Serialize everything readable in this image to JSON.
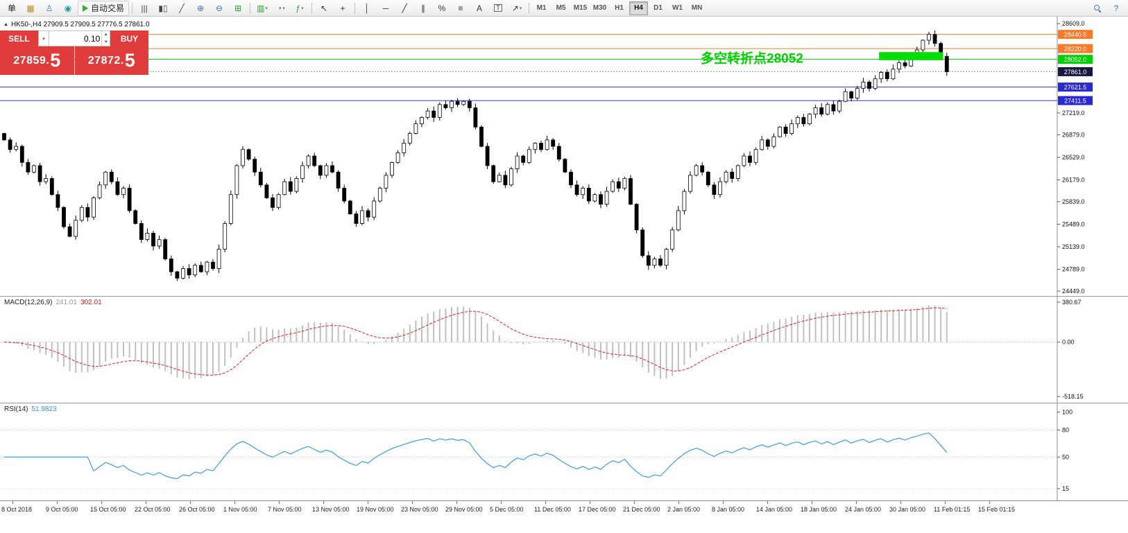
{
  "colors": {
    "trade_red": "#e03c3c",
    "candle_up_fill": "#ffffff",
    "candle_down_fill": "#000000",
    "candle_stroke": "#000000",
    "macd_hist": "#c0c0c0",
    "macd_signal": "#e02020",
    "rsi_line": "#4aa3df",
    "annotation_green": "#00cf00",
    "axis_line": "#8c8c8c"
  },
  "toolbar": {
    "items": [
      {
        "name": "new-order-button",
        "glyph": "单",
        "color": "#222"
      },
      {
        "name": "market-watch-button",
        "glyph": "▦",
        "color": "#c08a2a"
      },
      {
        "name": "navigator-button",
        "glyph": "♙",
        "color": "#3a6fbf"
      },
      {
        "name": "strategy-tester-button",
        "glyph": "◉",
        "color": "#1f9e9e"
      },
      {
        "name": "autotrade-button",
        "kind": "autotrade",
        "label": "自动交易"
      },
      {
        "kind": "sep"
      },
      {
        "name": "bar-chart-button",
        "glyph": "|||",
        "color": "#444"
      },
      {
        "name": "candlestick-chart-button",
        "glyph": "▮▯",
        "color": "#444"
      },
      {
        "name": "line-chart-button",
        "glyph": "╱",
        "color": "#444"
      },
      {
        "name": "zoom-in-button",
        "glyph": "⊕",
        "color": "#3a6fbf"
      },
      {
        "name": "zoom-out-button",
        "glyph": "⊖",
        "color": "#3a6fbf"
      },
      {
        "name": "tile-windows-button",
        "glyph": "⊞",
        "color": "#2f9e2f"
      },
      {
        "kind": "sep"
      },
      {
        "name": "new-chart-button",
        "glyph": "▥",
        "color": "#2f9e2f",
        "dd": true
      },
      {
        "name": "profiles-button",
        "glyph": "◔",
        "color": "#3a6fbf",
        "dd": true
      },
      {
        "name": "indicators-button",
        "glyph": "ƒ",
        "color": "#2f9e2f",
        "dd": true
      },
      {
        "kind": "sep"
      },
      {
        "name": "cursor-button",
        "glyph": "↖",
        "color": "#333"
      },
      {
        "name": "crosshair-button",
        "glyph": "+",
        "color": "#333"
      },
      {
        "kind": "sep"
      },
      {
        "name": "vertical-line-button",
        "glyph": "│",
        "color": "#333"
      },
      {
        "name": "horizontal-line-button",
        "glyph": "─",
        "color": "#333"
      },
      {
        "name": "trendline-button",
        "glyph": "╱",
        "color": "#333"
      },
      {
        "name": "channel-button",
        "glyph": "∥",
        "color": "#333"
      },
      {
        "name": "fibonacci-button",
        "glyph": "%",
        "color": "#333"
      },
      {
        "name": "shapes-button",
        "glyph": "≡",
        "color": "#333"
      },
      {
        "name": "text-button",
        "glyph": "A",
        "color": "#333"
      },
      {
        "name": "text-label-button",
        "glyph": "T",
        "color": "#333",
        "boxed": true
      },
      {
        "name": "arrows-button",
        "glyph": "↗",
        "color": "#333",
        "dd": true
      },
      {
        "kind": "sep"
      }
    ],
    "timeframes": [
      {
        "label": "M1"
      },
      {
        "label": "M5"
      },
      {
        "label": "M15"
      },
      {
        "label": "M30"
      },
      {
        "label": "H1"
      },
      {
        "label": "H4",
        "active": true
      },
      {
        "label": "D1"
      },
      {
        "label": "W1"
      },
      {
        "label": "MN"
      }
    ],
    "right_items": [
      {
        "name": "search-button",
        "kind": "mag"
      },
      {
        "name": "help-button",
        "glyph": "?",
        "color": "#3a6fbf"
      }
    ]
  },
  "chart": {
    "title": "HK50-,H4 27909.5 27909.5 27776.5 27861.0",
    "trade_panel": {
      "sell_label": "SELL",
      "buy_label": "BUY",
      "volume": "0.10",
      "sell_price_main": "27859.",
      "sell_price_big": "5",
      "buy_price_main": "27872.",
      "buy_price_big": "5"
    },
    "scale": {
      "max": 28609,
      "min": 24449
    },
    "axis_ticks": [
      {
        "label": "28609.0",
        "value": 28609
      },
      {
        "label": "27219.0",
        "value": 27219
      },
      {
        "label": "26879.0",
        "value": 26879
      },
      {
        "label": "26529.0",
        "value": 26529
      },
      {
        "label": "26179.0",
        "value": 26179
      },
      {
        "label": "25839.0",
        "value": 25839
      },
      {
        "label": "25489.0",
        "value": 25489
      },
      {
        "label": "25139.0",
        "value": 25139
      },
      {
        "label": "24789.0",
        "value": 24789
      },
      {
        "label": "24449.0",
        "value": 24449
      }
    ],
    "levels": [
      {
        "label": "28440.5",
        "value": 28440.5,
        "line_color": "#ff7a28",
        "badge_color": "#ff7a28",
        "style": "solid"
      },
      {
        "label": "28220.0",
        "value": 28220,
        "line_color": "#ff7a28",
        "badge_color": "#ff7a28",
        "style": "solid"
      },
      {
        "label": "28052.0",
        "value": 28052,
        "line_color": "#00cf00",
        "badge_color": "#00cf00",
        "style": "solid"
      },
      {
        "label": "27861.0",
        "value": 27861,
        "line_color": "#9a9aa2",
        "badge_color": "#16163e",
        "style": "dotted",
        "current": true
      },
      {
        "label": "27621.5",
        "value": 27621.5,
        "line_color": "#3333cc",
        "badge_color": "#2929d4",
        "style": "solid"
      },
      {
        "label": "27411.5",
        "value": 27411.5,
        "line_color": "#3333cc",
        "badge_color": "#2929d4",
        "style": "solid"
      }
    ],
    "annotation": {
      "text": "多空转折点28052",
      "x": 1010,
      "price": 28065,
      "color": "#00cf00"
    },
    "highlight_rect": {
      "start_index": 147,
      "end_index": 157,
      "price_top": 28165,
      "price_bottom": 28040,
      "color": "#00dd00"
    }
  },
  "macd_panel": {
    "label": "MACD(12,26,9)",
    "value1": "241.01",
    "value2": "302.01",
    "axis_ticks": [
      {
        "label": "380.67",
        "value": 380.67
      },
      {
        "label": "0.00",
        "value": 0
      },
      {
        "label": "-518.15",
        "value": -518.15
      }
    ]
  },
  "rsi_panel": {
    "label": "RSI(14)",
    "value": "51.9823",
    "axis_ticks": [
      {
        "label": "100",
        "value": 100
      },
      {
        "label": "80",
        "value": 80
      },
      {
        "label": "50",
        "value": 50
      },
      {
        "label": "15",
        "value": 15
      }
    ],
    "level_lines": [
      80,
      50,
      15
    ]
  },
  "time_axis": {
    "labels": [
      "8 Oct 2018",
      "9 Oct 05:00",
      "15 Oct 05:00",
      "22 Oct 05:00",
      "26 Oct 05:00",
      "1 Nov 05:00",
      "7 Nov 05:00",
      "13 Nov 05:00",
      "19 Nov 05:00",
      "23 Nov 05:00",
      "29 Nov 05:00",
      "5 Dec 05:00",
      "11 Dec 05:00",
      "17 Dec 05:00",
      "21 Dec 05:00",
      "2 Jan 05:00",
      "8 Jan 05:00",
      "14 Jan 05:00",
      "18 Jan 05:00",
      "24 Jan 05:00",
      "30 Jan 05:00",
      "11 Feb 01:15",
      "15 Feb 01:15"
    ]
  },
  "chart_data": {
    "type": "candlestick",
    "symbol": "HK50-",
    "period": "H4",
    "title": "HK50-,H4",
    "ohlc_display": {
      "open": 27909.5,
      "high": 27909.5,
      "low": 27776.5,
      "close": 27861.0
    },
    "first_open": 26900,
    "closes": [
      26800,
      26650,
      26700,
      26450,
      26300,
      26400,
      26150,
      26200,
      25950,
      25750,
      25450,
      25300,
      25550,
      25750,
      25600,
      25900,
      26100,
      26300,
      26150,
      25950,
      26050,
      25700,
      25500,
      25250,
      25350,
      25150,
      25250,
      24950,
      24750,
      24650,
      24800,
      24700,
      24850,
      24750,
      24900,
      24800,
      25100,
      25500,
      25950,
      26400,
      26650,
      26500,
      26300,
      26100,
      25900,
      25750,
      25950,
      26150,
      26000,
      26200,
      26400,
      26550,
      26400,
      26250,
      26400,
      26300,
      26050,
      25850,
      25650,
      25500,
      25700,
      25600,
      25850,
      26050,
      26250,
      26450,
      26600,
      26750,
      26900,
      27050,
      27150,
      27250,
      27150,
      27350,
      27300,
      27400,
      27350,
      27400,
      27300,
      27000,
      26700,
      26400,
      26150,
      26250,
      26100,
      26350,
      26550,
      26450,
      26650,
      26750,
      26650,
      26800,
      26700,
      26500,
      26300,
      26100,
      25950,
      26050,
      25850,
      25950,
      25800,
      26000,
      26150,
      26050,
      26200,
      25800,
      25400,
      25000,
      24850,
      24950,
      24850,
      25100,
      25400,
      25700,
      26000,
      26250,
      26400,
      26300,
      26100,
      25950,
      26150,
      26300,
      26200,
      26400,
      26550,
      26450,
      26650,
      26800,
      26700,
      26850,
      27000,
      26900,
      27050,
      27150,
      27050,
      27200,
      27300,
      27200,
      27350,
      27250,
      27400,
      27550,
      27450,
      27600,
      27700,
      27600,
      27750,
      27850,
      27750,
      27900,
      28000,
      27950,
      28100,
      28200,
      28350,
      28440,
      28300,
      28100,
      27861
    ],
    "horizontal_levels": [
      28440.5,
      28220.0,
      28052.0,
      27861.0,
      27621.5,
      27411.5
    ],
    "y_range": [
      24449,
      28609
    ],
    "indicators": [
      {
        "name": "MACD",
        "params": [
          12,
          26,
          9
        ],
        "displayed_values": [
          241.01,
          302.01
        ],
        "axis_range": [
          -518.15,
          380.67
        ]
      },
      {
        "name": "RSI",
        "params": [
          14
        ],
        "displayed_value": 51.9823,
        "axis_labels": [
          100,
          80,
          50,
          15
        ]
      }
    ]
  }
}
